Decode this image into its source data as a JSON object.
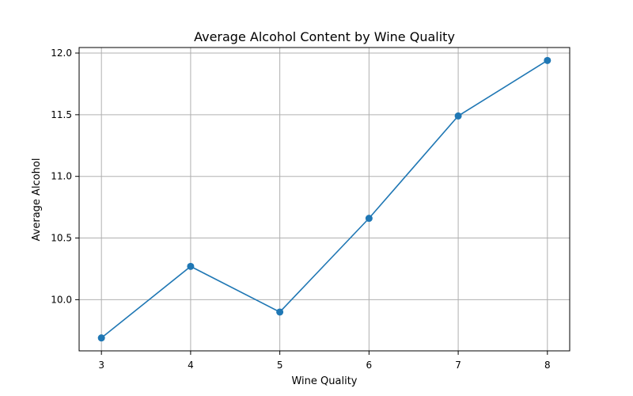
{
  "chart_data": {
    "type": "line",
    "title": "Average Alcohol Content by Wine Quality",
    "xlabel": "Wine Quality",
    "ylabel": "Average Alcohol",
    "x": [
      3,
      4,
      5,
      6,
      7,
      8
    ],
    "series": [
      {
        "values": [
          9.69,
          10.27,
          9.9,
          10.66,
          11.49,
          11.94
        ]
      }
    ],
    "xlim": [
      2.75,
      8.25
    ],
    "ylim": [
      9.585,
      12.045
    ],
    "xticks": [
      3,
      4,
      5,
      6,
      7,
      8
    ],
    "yticks": [
      10.0,
      10.5,
      11.0,
      11.5,
      12.0
    ],
    "ytick_labels": [
      "10.0",
      "10.5",
      "11.0",
      "11.5",
      "12.0"
    ],
    "grid": true,
    "line_color": "#1f77b4",
    "marker": "circle"
  }
}
